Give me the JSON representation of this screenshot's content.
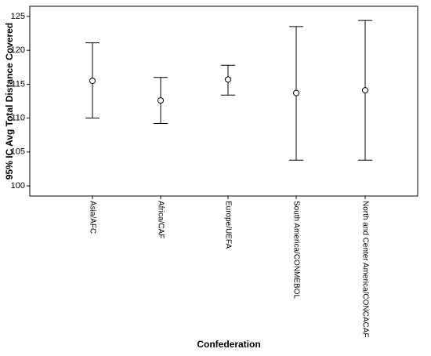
{
  "chart_data": {
    "type": "errorbar",
    "ylabel": "95% IC Avg Total Distance Covered",
    "xlabel": "Confederation",
    "categories": [
      "Asia/AFC",
      "Africa/CAF",
      "Europe/UEFA",
      "South America/CONMEBOL",
      "North and Center America/CONCACAF"
    ],
    "values": [
      115.5,
      112.6,
      115.7,
      113.7,
      114.1
    ],
    "lower": [
      110.0,
      109.2,
      113.4,
      103.8,
      103.8
    ],
    "upper": [
      121.1,
      116.0,
      117.8,
      123.5,
      124.4
    ],
    "color": "#000000",
    "ylim": [
      98.5,
      126.5
    ],
    "yticks": [
      100,
      105,
      110,
      115,
      120,
      125
    ]
  }
}
